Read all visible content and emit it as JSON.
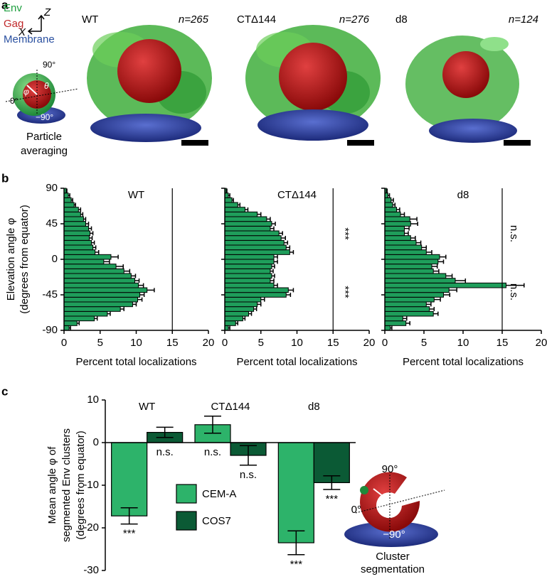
{
  "panel_labels": [
    "a",
    "b",
    "c"
  ],
  "panel_a": {
    "legend": [
      "Env",
      "Gag",
      "Membrane"
    ],
    "axes": [
      "Z",
      "X"
    ],
    "schematic": {
      "top": "90°",
      "side": "0°",
      "bottom": "−90°",
      "theta": "θ",
      "phi": "φ",
      "caption": [
        "Particle",
        "averaging"
      ]
    },
    "panels": [
      {
        "title": "WT",
        "n": "n=265"
      },
      {
        "title": "CTΔ144",
        "n": "n=276"
      },
      {
        "title": "d8",
        "n": "n=124"
      }
    ]
  },
  "chart_data": [
    {
      "type": "histogram",
      "orientation": "horizontal",
      "title": "WT",
      "color": "#1f9e5b",
      "bins": [
        -90,
        -84,
        -78,
        -72,
        -66,
        -60,
        -54,
        -48,
        -42,
        -36,
        -30,
        -24,
        -18,
        -12,
        -6,
        0,
        6,
        12,
        18,
        24,
        30,
        36,
        42,
        48,
        54,
        60,
        66,
        72,
        78,
        84,
        90
      ],
      "values": [
        0.7,
        1.8,
        4.2,
        6.0,
        7.8,
        9.5,
        10.2,
        10.5,
        11.5,
        10.3,
        9.8,
        9.3,
        8.3,
        7.2,
        5.5,
        6.5,
        4.3,
        4.0,
        3.8,
        3.5,
        3.6,
        3.4,
        3.0,
        2.7,
        2.3,
        2.0,
        1.4,
        1.0,
        0.6,
        0.3
      ],
      "errors": [
        0.2,
        0.3,
        0.4,
        0.4,
        0.5,
        0.5,
        0.6,
        0.6,
        1.0,
        0.7,
        0.6,
        0.6,
        0.8,
        1.0,
        0.8,
        1.0,
        0.5,
        0.4,
        0.4,
        0.4,
        0.4,
        0.4,
        0.4,
        0.3,
        0.3,
        0.3,
        0.2,
        0.2,
        0.2,
        0.1
      ],
      "xlim": [
        0,
        20
      ],
      "xticks": [
        0,
        5,
        10,
        15,
        20
      ],
      "ylim": [
        -90,
        90
      ],
      "yticks": [
        90,
        45,
        0,
        -45,
        -90
      ],
      "xlabel": "Percent total localizations",
      "ylabel": [
        "Elevation angle φ",
        "(degrees from equator)"
      ],
      "vline": 15,
      "annotations": []
    },
    {
      "type": "histogram",
      "orientation": "horizontal",
      "title": "CTΔ144",
      "color": "#1f9e5b",
      "bins": [
        -90,
        -84,
        -78,
        -72,
        -66,
        -60,
        -54,
        -48,
        -42,
        -36,
        -30,
        -24,
        -18,
        -12,
        -6,
        0,
        6,
        12,
        18,
        24,
        30,
        36,
        42,
        48,
        54,
        60,
        66,
        72,
        78,
        84,
        90
      ],
      "values": [
        0.5,
        1.5,
        2.5,
        3.3,
        4.0,
        4.5,
        5.0,
        8.5,
        8.8,
        6.8,
        6.3,
        6.5,
        6.3,
        6.5,
        6.8,
        6.8,
        9.0,
        8.5,
        8.2,
        7.8,
        7.5,
        6.3,
        6.5,
        5.8,
        4.5,
        2.8,
        1.8,
        1.0,
        0.5,
        0.2
      ],
      "errors": [
        0.2,
        0.3,
        0.3,
        0.4,
        0.4,
        0.5,
        0.5,
        0.6,
        0.7,
        0.5,
        0.5,
        0.4,
        0.4,
        0.4,
        0.5,
        0.5,
        0.5,
        0.5,
        0.5,
        0.6,
        0.5,
        0.5,
        0.5,
        0.5,
        0.5,
        0.4,
        0.3,
        0.2,
        0.2,
        0.1
      ],
      "xlim": [
        0,
        20
      ],
      "xticks": [
        0,
        5,
        10,
        15,
        20
      ],
      "ylim": [
        -90,
        90
      ],
      "yticks": [
        90,
        45,
        0,
        -45,
        -90
      ],
      "xlabel": "Percent total localizations",
      "vline": 15,
      "annotations": [
        "***",
        "***"
      ]
    },
    {
      "type": "histogram",
      "orientation": "horizontal",
      "title": "d8",
      "color": "#1f9e5b",
      "bins": [
        -90,
        -84,
        -78,
        -72,
        -66,
        -60,
        -54,
        -48,
        -42,
        -36,
        -30,
        -24,
        -18,
        -12,
        -6,
        0,
        6,
        12,
        18,
        24,
        30,
        36,
        42,
        48,
        54,
        60,
        66,
        72,
        78,
        84,
        90
      ],
      "values": [
        0.7,
        2.7,
        2.3,
        6.2,
        5.7,
        5.3,
        6.3,
        7.5,
        8.2,
        15.5,
        9.0,
        7.8,
        6.2,
        6.0,
        6.8,
        7.0,
        5.3,
        4.7,
        4.0,
        3.3,
        2.5,
        2.5,
        3.3,
        3.2,
        2.0,
        1.5,
        1.0,
        0.8,
        0.4,
        0.2
      ],
      "errors": [
        0.2,
        0.5,
        0.5,
        0.6,
        0.6,
        0.6,
        0.8,
        0.8,
        1.0,
        2.3,
        1.3,
        0.8,
        0.7,
        0.7,
        0.7,
        0.8,
        0.7,
        0.6,
        0.6,
        0.6,
        0.5,
        0.6,
        0.9,
        0.9,
        0.5,
        0.4,
        0.3,
        0.3,
        0.2,
        0.1
      ],
      "xlim": [
        0,
        20
      ],
      "xticks": [
        0,
        5,
        10,
        15,
        20
      ],
      "ylim": [
        -90,
        90
      ],
      "yticks": [
        90,
        45,
        0,
        -45,
        -90
      ],
      "xlabel": "Percent total localizations",
      "vline": 15,
      "annotations": [
        "n.s.",
        "n.s."
      ]
    },
    {
      "type": "bar",
      "categories": [
        "WT",
        "CTΔ144",
        "d8"
      ],
      "series": [
        {
          "name": "CEM-A",
          "color": "#2db36a",
          "values": [
            -17.2,
            4.2,
            -23.5
          ],
          "errors": [
            1.9,
            2.0,
            2.8
          ],
          "value_labels": [
            "***",
            "n.s.",
            "***"
          ]
        },
        {
          "name": "COS7",
          "color": "#0b5a35",
          "values": [
            2.4,
            -3.0,
            -9.4
          ],
          "errors": [
            1.2,
            2.3,
            1.6
          ],
          "value_labels": [
            "n.s.",
            "n.s.",
            "***"
          ]
        }
      ],
      "ylim": [
        -30,
        10
      ],
      "yticks": [
        -30,
        -20,
        -10,
        0,
        10
      ],
      "ylabel": [
        "Mean angle φ of",
        "segmented Env clusters",
        "(degrees from equator)"
      ],
      "schematic": {
        "top": "90°",
        "side": "0°",
        "bottom": "−90°",
        "phi": "φ",
        "caption": [
          "Cluster",
          "segmentation"
        ]
      }
    }
  ]
}
